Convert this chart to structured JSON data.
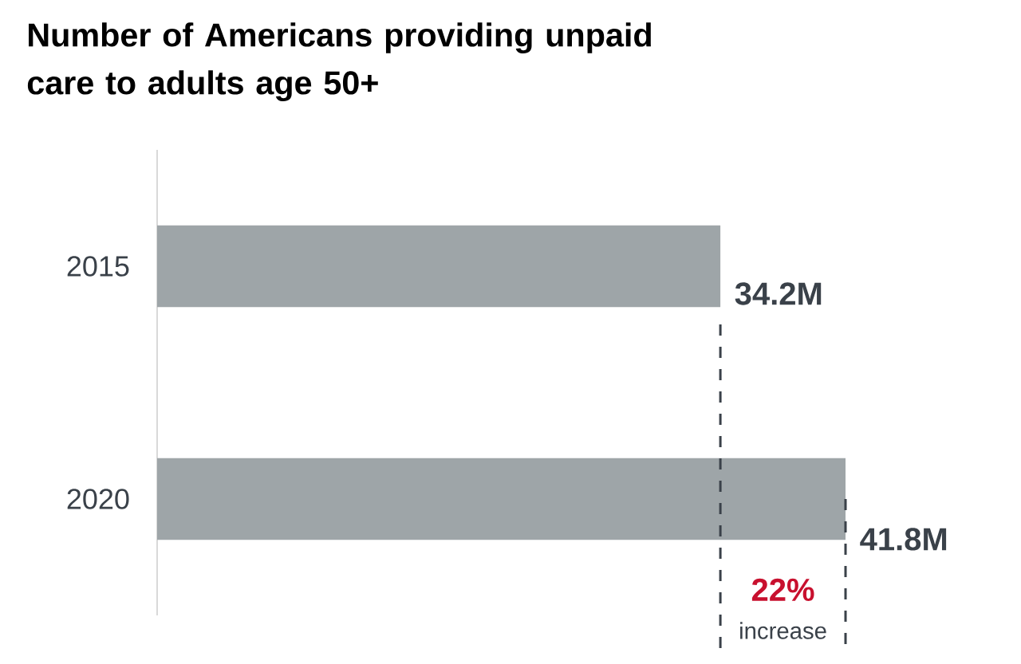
{
  "chart_data": {
    "type": "bar",
    "orientation": "horizontal",
    "title": "Number of Americans providing unpaid care to adults age 50+",
    "categories": [
      "2015",
      "2020"
    ],
    "values": [
      34.2,
      41.8
    ],
    "value_labels": [
      "34.2M",
      "41.8M"
    ],
    "color": "#9ea5a8",
    "ref_lines": [
      {
        "axis": "x",
        "value": 34.2,
        "color": "#3a4149",
        "line_style": "dashed"
      },
      {
        "axis": "x",
        "value": 41.8,
        "color": "#3a4149",
        "line_style": "dashed"
      }
    ],
    "annotations": [
      "22%",
      "increase"
    ]
  }
}
